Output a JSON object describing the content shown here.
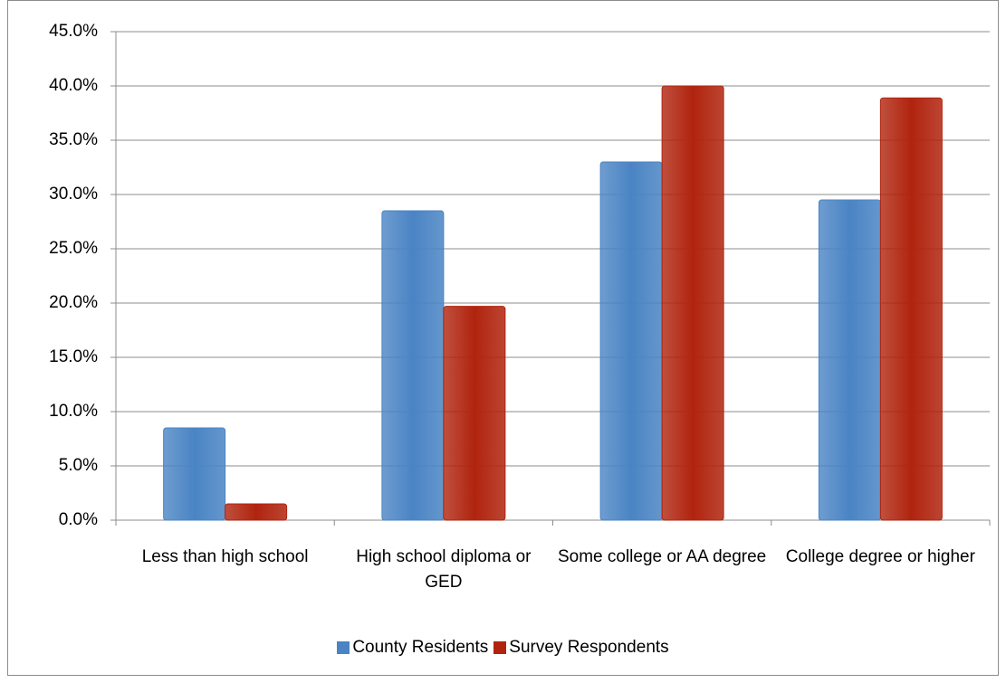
{
  "chart_data": {
    "type": "bar",
    "categories": [
      "Less than high school",
      "High school diploma or GED",
      "Some college or AA degree",
      "College degree or higher"
    ],
    "series": [
      {
        "name": "County Residents",
        "color": "#4a84c4",
        "values": [
          8.5,
          28.5,
          33.0,
          29.5
        ]
      },
      {
        "name": "Survey Respondents",
        "color": "#b0240e",
        "values": [
          1.5,
          19.7,
          40.0,
          38.9
        ]
      }
    ],
    "ylim": [
      0,
      45
    ],
    "yticks": [
      {
        "value": 0,
        "label": "0.0%"
      },
      {
        "value": 5,
        "label": "5.0%"
      },
      {
        "value": 10,
        "label": "10.0%"
      },
      {
        "value": 15,
        "label": "15.0%"
      },
      {
        "value": 20,
        "label": "20.0%"
      },
      {
        "value": 25,
        "label": "25.0%"
      },
      {
        "value": 30,
        "label": "30.0%"
      },
      {
        "value": 35,
        "label": "35.0%"
      },
      {
        "value": 40,
        "label": "40.0%"
      },
      {
        "value": 45,
        "label": "45.0%"
      }
    ],
    "grid": true,
    "legend": "bottom"
  }
}
